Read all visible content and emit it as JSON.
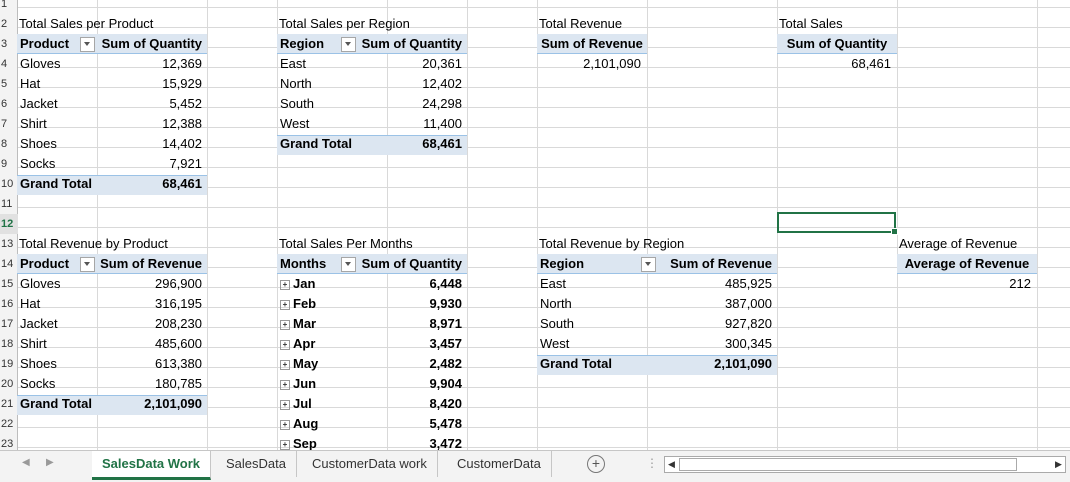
{
  "row_numbers": [
    "1",
    "2",
    "3",
    "4",
    "5",
    "6",
    "7",
    "8",
    "9",
    "10",
    "11",
    "12",
    "13",
    "14",
    "15",
    "16",
    "17",
    "18",
    "19",
    "20",
    "21",
    "22",
    "23"
  ],
  "selected_row": "12",
  "pivot_product_qty": {
    "title": "Total Sales per Product",
    "col1": "Product",
    "col2": "Sum of Quantity",
    "rows": [
      {
        "label": "Gloves",
        "value": "12,369"
      },
      {
        "label": "Hat",
        "value": "15,929"
      },
      {
        "label": "Jacket",
        "value": "5,452"
      },
      {
        "label": "Shirt",
        "value": "12,388"
      },
      {
        "label": "Shoes",
        "value": "14,402"
      },
      {
        "label": "Socks",
        "value": "7,921"
      }
    ],
    "total_label": "Grand Total",
    "total_value": "68,461"
  },
  "pivot_region_qty": {
    "title": "Total Sales per Region",
    "col1": "Region",
    "col2": "Sum of Quantity",
    "rows": [
      {
        "label": "East",
        "value": "20,361"
      },
      {
        "label": "North",
        "value": "12,402"
      },
      {
        "label": "South",
        "value": "24,298"
      },
      {
        "label": "West",
        "value": "11,400"
      }
    ],
    "total_label": "Grand Total",
    "total_value": "68,461"
  },
  "pivot_total_revenue": {
    "title": "Total Revenue",
    "header": "Sum of Revenue",
    "value": "2,101,090"
  },
  "pivot_total_sales": {
    "title": "Total Sales",
    "header": "Sum of Quantity",
    "value": "68,461"
  },
  "pivot_product_rev": {
    "title": "Total Revenue by Product",
    "col1": "Product",
    "col2": "Sum of Revenue",
    "rows": [
      {
        "label": "Gloves",
        "value": "296,900"
      },
      {
        "label": "Hat",
        "value": "316,195"
      },
      {
        "label": "Jacket",
        "value": "208,230"
      },
      {
        "label": "Shirt",
        "value": "485,600"
      },
      {
        "label": "Shoes",
        "value": "613,380"
      },
      {
        "label": "Socks",
        "value": "180,785"
      }
    ],
    "total_label": "Grand Total",
    "total_value": "2,101,090"
  },
  "pivot_months_qty": {
    "title": "Total Sales Per Months",
    "col1": "Months",
    "col2": "Sum of Quantity",
    "rows": [
      {
        "label": "Jan",
        "value": "6,448"
      },
      {
        "label": "Feb",
        "value": "9,930"
      },
      {
        "label": "Mar",
        "value": "8,971"
      },
      {
        "label": "Apr",
        "value": "3,457"
      },
      {
        "label": "May",
        "value": "2,482"
      },
      {
        "label": "Jun",
        "value": "9,904"
      },
      {
        "label": "Jul",
        "value": "8,420"
      },
      {
        "label": "Aug",
        "value": "5,478"
      },
      {
        "label": "Sep",
        "value": "3,472"
      }
    ]
  },
  "pivot_region_rev": {
    "title": "Total Revenue by Region",
    "col1": "Region",
    "col2": "Sum of Revenue",
    "rows": [
      {
        "label": "East",
        "value": "485,925"
      },
      {
        "label": "North",
        "value": "387,000"
      },
      {
        "label": "South",
        "value": "927,820"
      },
      {
        "label": "West",
        "value": "300,345"
      }
    ],
    "total_label": "Grand Total",
    "total_value": "2,101,090"
  },
  "pivot_avg_revenue": {
    "title": "Average of Revenue",
    "header": "Average of Revenue",
    "value": "212"
  },
  "sheet_tabs": [
    "SalesData Work",
    "SalesData",
    "CustomerData work",
    "CustomerData"
  ],
  "active_tab": "SalesData Work",
  "icons": {
    "add_sheet": "plus-circle-icon",
    "prev": "triangle-left-icon",
    "next": "triangle-right-icon",
    "options": "vertical-dots-icon"
  }
}
